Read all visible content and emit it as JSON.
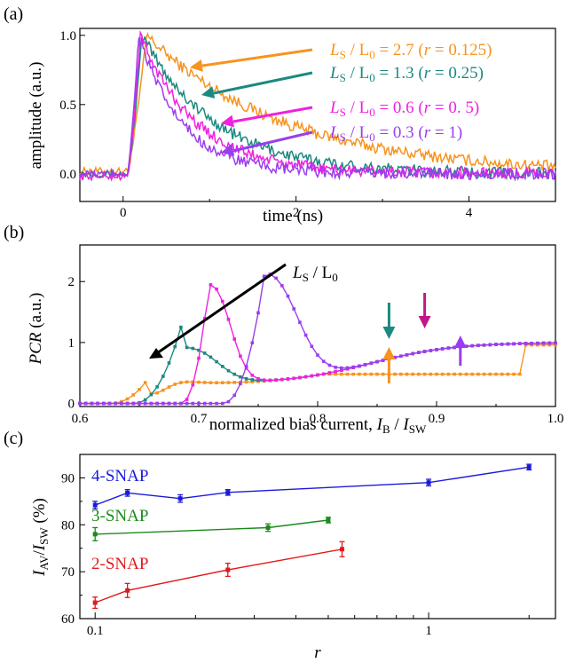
{
  "chart_data": [
    {
      "panel": "(a)",
      "type": "line",
      "xlabel": "time (ns)",
      "ylabel": "amplitude (a.u.)",
      "xlim": [
        -0.5,
        5
      ],
      "ylim": [
        -0.2,
        1.05
      ],
      "xticks": [
        "0",
        "2",
        "4"
      ],
      "yticks": [
        "0.0",
        "0.5",
        "1.0"
      ],
      "series": [
        {
          "name": "L_S / L_0 = 2.7 (r = 0.125)",
          "label": {
            "a": "L",
            "as": "S",
            "b": " / L",
            "bs": "0",
            "c": " = 2.7 (",
            "r": "r",
            "d": " = 0.125)"
          },
          "color": "#f7931e",
          "peak": 0.27,
          "tau": 1.6,
          "rise": 0.085,
          "base": 0.02,
          "x": [
            -0.5,
            -0.3,
            -0.1,
            0.05,
            0.25,
            0.5,
            1.0,
            1.5,
            2.0,
            2.5,
            3.0,
            4.0,
            5.0
          ],
          "y": [
            0.02,
            0.03,
            0.02,
            0.3,
            1.0,
            0.78,
            0.55,
            0.39,
            0.27,
            0.19,
            0.13,
            0.07,
            0.04
          ]
        },
        {
          "name": "L_S / L_0 = 1.3 (r = 0.25)",
          "label": {
            "a": "L",
            "as": "S",
            "b": " / L",
            "bs": "0",
            "c": " = 1.3 (",
            "r": "r",
            "d": " = 0.25)"
          },
          "color": "#1a8a80",
          "peak": 0.22,
          "tau": 0.85,
          "rise": 0.08,
          "base": 0.0,
          "x": [
            -0.5,
            -0.3,
            -0.1,
            0.05,
            0.22,
            0.5,
            1.0,
            1.5,
            2.0,
            2.5,
            3.0,
            4.0,
            5.0
          ],
          "y": [
            0.05,
            0.06,
            0.04,
            0.3,
            0.98,
            0.72,
            0.46,
            0.25,
            0.13,
            0.07,
            0.03,
            0.01,
            0.0
          ]
        },
        {
          "name": "L_S / L_0 = 0.6 (r = 0.5)",
          "label": {
            "a": "L",
            "as": "S",
            "b": " / L",
            "bs": "0",
            "c": " = 0.6 (",
            "r": "r",
            "d": " = 0. 5)"
          },
          "color": "#f020e0",
          "peak": 0.2,
          "tau": 0.65,
          "rise": 0.075,
          "base": -0.02,
          "x": [
            -0.5,
            -0.3,
            -0.1,
            0.05,
            0.2,
            0.5,
            1.0,
            1.5,
            2.0,
            2.5,
            3.0,
            4.0,
            5.0
          ],
          "y": [
            -0.02,
            -0.01,
            0.0,
            0.3,
            0.98,
            0.6,
            0.3,
            0.12,
            0.04,
            -0.02,
            -0.05,
            -0.03,
            -0.02
          ]
        },
        {
          "name": "L_S / L_0 = 0.3 (r = 1)",
          "label": {
            "a": "L",
            "as": "S",
            "b": " / L",
            "bs": "0",
            "c": " = 0.3 (",
            "r": "r",
            "d": " = 1)"
          },
          "color": "#9a3df0",
          "peak": 0.18,
          "tau": 0.5,
          "rise": 0.07,
          "base": 0.0,
          "x": [
            -0.5,
            -0.3,
            -0.1,
            0.05,
            0.18,
            0.5,
            1.0,
            1.5,
            2.0,
            2.5,
            3.0,
            4.0,
            5.0
          ],
          "y": [
            0.08,
            0.06,
            0.05,
            0.35,
            0.96,
            0.52,
            0.2,
            0.07,
            0.02,
            0.0,
            0.0,
            0.0,
            0.0
          ]
        }
      ]
    },
    {
      "panel": "(b)",
      "type": "line",
      "xlabel": {
        "a": "normalized bias current, ",
        "i1": "I",
        "s1": "B",
        "mid": " / ",
        "i2": "I",
        "s2": "SW"
      },
      "ylabel": "PCR (a.u.)",
      "xlim": [
        0.6,
        1.0
      ],
      "ylim": [
        -0.05,
        2.6
      ],
      "xticks": [
        "0.6",
        "0.7",
        "0.8",
        "0.9",
        "1.0"
      ],
      "yticks": [
        "0",
        "1",
        "2"
      ],
      "annotation": {
        "a": "L",
        "as": "S",
        "b": " / L",
        "bs": "0"
      },
      "series": [
        {
          "color": "#f7931e",
          "onset": 0.625,
          "peak_x": 0.66,
          "peak_y": 0.48,
          "dip": 0.37,
          "arrow_x": 0.86,
          "arrow_dir": "up"
        },
        {
          "color": "#1a8a80",
          "onset": 0.645,
          "peak_x": 0.685,
          "peak_y": 1.25,
          "dip": 0.35,
          "arrow_x": 0.86,
          "arrow_dir": "down"
        },
        {
          "color": "#f020e0",
          "onset": 0.685,
          "peak_x": 0.71,
          "peak_y": 2.28,
          "dip": 0.55,
          "arrow_x": 0.89,
          "arrow_dir": "down"
        },
        {
          "color": "#9a3df0",
          "onset": 0.72,
          "peak_x": 0.758,
          "peak_y": 2.5,
          "dip": 0.55,
          "arrow_x": 0.92,
          "arrow_dir": "up"
        }
      ],
      "arrow_colors": {
        "down_teal": "#1a8a80",
        "down_magenta": "#c0168a",
        "up_orange": "#f7931e",
        "up_purple": "#9a3df0"
      }
    },
    {
      "panel": "(c)",
      "type": "scatter",
      "xscale": "log",
      "xlabel": "r",
      "ylabel": {
        "i1": "I",
        "s1": "AV",
        "mid": "/",
        "i2": "I",
        "s2": "SW",
        "unit": " (%)"
      },
      "xlim": [
        0.09,
        2.4
      ],
      "ylim": [
        60,
        95
      ],
      "xticks": [
        "0.1",
        "1"
      ],
      "yticks": [
        "60",
        "70",
        "80",
        "90"
      ],
      "series": [
        {
          "name": "4-SNAP",
          "color": "#1a1adb",
          "x": [
            0.1,
            0.125,
            0.18,
            0.25,
            1.0,
            2.0
          ],
          "y": [
            84.2,
            86.8,
            85.6,
            86.9,
            89.0,
            92.3
          ],
          "err": [
            0.8,
            0.7,
            0.8,
            0.6,
            0.7,
            0.6
          ]
        },
        {
          "name": "3-SNAP",
          "color": "#1a8a1a",
          "x": [
            0.1,
            0.33,
            0.5
          ],
          "y": [
            78.0,
            79.4,
            81.0
          ],
          "err": [
            1.4,
            0.8,
            0.6
          ]
        },
        {
          "name": "2-SNAP",
          "color": "#e01a1a",
          "x": [
            0.1,
            0.125,
            0.25,
            0.55
          ],
          "y": [
            63.4,
            66.0,
            70.4,
            74.8
          ],
          "err": [
            1.2,
            1.5,
            1.4,
            1.6
          ]
        }
      ]
    }
  ]
}
